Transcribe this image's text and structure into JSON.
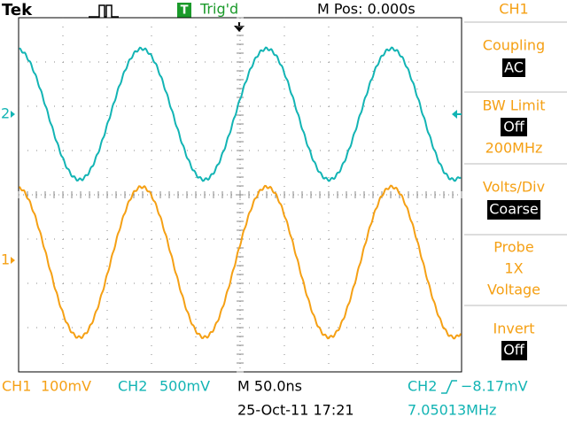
{
  "header": {
    "brand": "Tek",
    "trigger_badge": "T",
    "trigger_status": "Trig'd",
    "m_pos": "M Pos: 0.000s"
  },
  "channel_markers": {
    "ch2": "2",
    "ch1": "1"
  },
  "menu": {
    "title": "CH1",
    "items": [
      {
        "label": "Coupling",
        "value": "AC"
      },
      {
        "label": "BW Limit",
        "value": "Off",
        "note": "200MHz"
      },
      {
        "label": "Volts/Div",
        "value": "Coarse"
      },
      {
        "label": "Probe",
        "lines": [
          "1X",
          "Voltage"
        ]
      },
      {
        "label": "Invert",
        "value": "Off"
      }
    ]
  },
  "footer": {
    "ch1": "CH1",
    "ch1_scale": "100mV",
    "ch2": "CH2",
    "ch2_scale": "500mV",
    "timebase": "M 50.0ns",
    "trigger_source": "CH2",
    "trigger_level": "−8.17mV",
    "datetime": "25-Oct-11 17:21",
    "frequency": "7.05013MHz"
  }
}
